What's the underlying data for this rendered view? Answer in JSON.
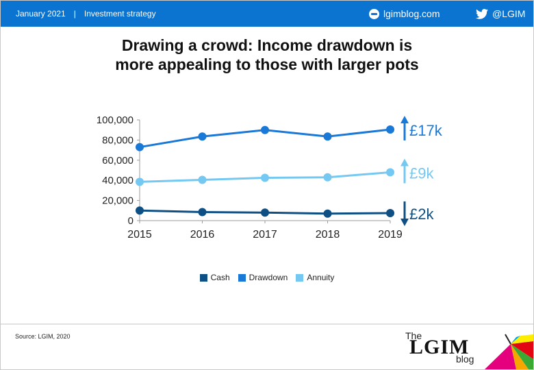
{
  "header": {
    "date": "January 2021",
    "separator": "|",
    "section": "Investment strategy",
    "site": "lgimblog.com",
    "twitter": "@LGIM",
    "bar_color": "#0b73d0",
    "site_icon": "globe-icon",
    "twitter_icon": "twitter-bird-icon"
  },
  "title_lines": [
    "Drawing a crowd: Income drawdown is",
    "more appealing to those with larger pots"
  ],
  "chart_data": {
    "type": "line",
    "categories": [
      "2015",
      "2016",
      "2017",
      "2018",
      "2019"
    ],
    "ylim": [
      0,
      100000
    ],
    "yticks": [
      "0",
      "20,000",
      "40,000",
      "60,000",
      "80,000",
      "100,000"
    ],
    "ytick_values": [
      0,
      20000,
      40000,
      60000,
      80000,
      100000
    ],
    "grid": false,
    "legend_position": "bottom",
    "series": [
      {
        "name": "Cash",
        "values": [
          10000,
          8500,
          8000,
          7000,
          7500
        ],
        "color": "#0e4f84",
        "change": "£2k",
        "direction": "down"
      },
      {
        "name": "Drawdown",
        "values": [
          73000,
          83500,
          90000,
          83500,
          90500
        ],
        "color": "#1a78d6",
        "change": "£17k",
        "direction": "up"
      },
      {
        "name": "Annuity",
        "values": [
          38500,
          40500,
          42500,
          43000,
          48000
        ],
        "color": "#74c8f1",
        "change": "£9k",
        "direction": "up"
      }
    ]
  },
  "footer": {
    "source": "Source: LGIM, 2020",
    "logo_the": "The",
    "logo_lgim": "LGIM",
    "logo_blog": "blog"
  }
}
